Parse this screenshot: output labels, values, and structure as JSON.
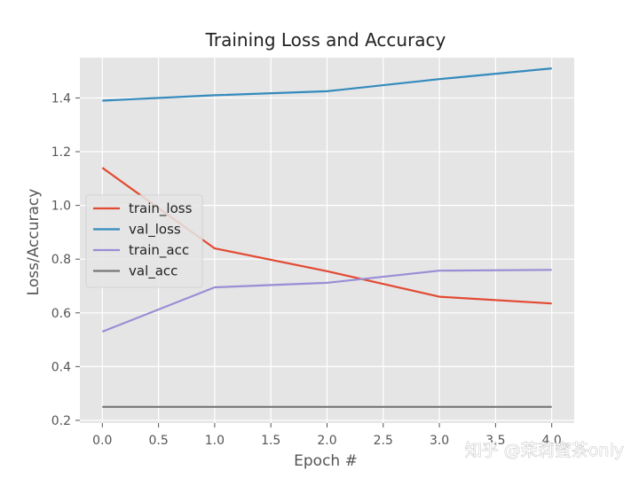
{
  "chart_data": {
    "type": "line",
    "title": "Training Loss and Accuracy",
    "xlabel": "Epoch #",
    "ylabel": "Loss/Accuracy",
    "x": [
      0,
      1,
      2,
      3,
      4
    ],
    "xlim": [
      -0.2,
      4.2
    ],
    "ylim": [
      0.19,
      1.55
    ],
    "xticks": [
      "0.0",
      "0.5",
      "1.0",
      "1.5",
      "2.0",
      "2.5",
      "3.0",
      "3.5",
      "4.0"
    ],
    "yticks": [
      "0.2",
      "0.4",
      "0.6",
      "0.8",
      "1.0",
      "1.2",
      "1.4"
    ],
    "grid": true,
    "legend_position": "center-left",
    "series": [
      {
        "name": "train_loss",
        "color": "#E24A33",
        "values": [
          1.14,
          0.84,
          0.755,
          0.66,
          0.635
        ]
      },
      {
        "name": "val_loss",
        "color": "#348ABD",
        "values": [
          1.39,
          1.41,
          1.425,
          1.47,
          1.51
        ]
      },
      {
        "name": "train_acc",
        "color": "#988ED5",
        "values": [
          0.53,
          0.695,
          0.712,
          0.757,
          0.76
        ]
      },
      {
        "name": "val_acc",
        "color": "#777777",
        "values": [
          0.25,
          0.25,
          0.25,
          0.25,
          0.25
        ]
      }
    ],
    "colors": {
      "plot_background": "#E5E5E5",
      "grid": "#FFFFFF"
    }
  },
  "watermark": "知乎 @茉莉蜜茶only"
}
